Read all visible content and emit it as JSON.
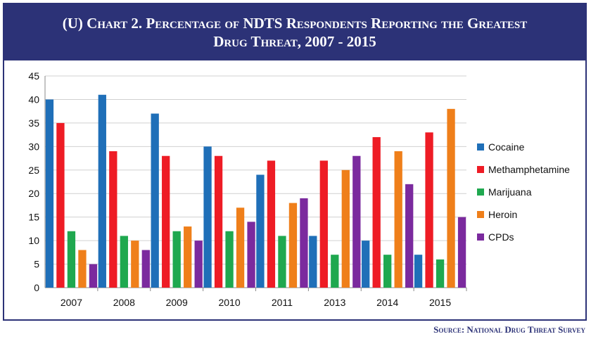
{
  "header": {
    "title_line1": "(U)  Chart 2.  Percentage of NDTS Respondents Reporting the Greatest",
    "title_line2": "Drug Threat, 2007 - 2015"
  },
  "source": "Source:  National Drug Threat Survey",
  "chart_data": {
    "type": "bar",
    "title": "(U)  Chart 2.  Percentage of NDTS Respondents Reporting the Greatest Drug Threat, 2007 - 2015",
    "categories": [
      "2007",
      "2008",
      "2009",
      "2010",
      "2011",
      "2013",
      "2014",
      "2015"
    ],
    "ylim": [
      0,
      45
    ],
    "yticks": [
      0,
      5,
      10,
      15,
      20,
      25,
      30,
      35,
      40,
      45
    ],
    "grid": "horizontal",
    "legend_position": "right",
    "series": [
      {
        "name": "Cocaine",
        "color": "#1f6fb8",
        "values": [
          40,
          41,
          37,
          30,
          24,
          11,
          10,
          7
        ]
      },
      {
        "name": "Methamphetamine",
        "color": "#ee1c25",
        "values": [
          35,
          29,
          28,
          28,
          27,
          27,
          32,
          33
        ]
      },
      {
        "name": "Marijuana",
        "color": "#1fa84f",
        "values": [
          12,
          11,
          12,
          12,
          11,
          7,
          7,
          6
        ]
      },
      {
        "name": "Heroin",
        "color": "#ef7f1a",
        "values": [
          8,
          10,
          13,
          17,
          18,
          25,
          29,
          38
        ]
      },
      {
        "name": "CPDs",
        "color": "#7b2a9e",
        "values": [
          5,
          8,
          10,
          14,
          19,
          28,
          22,
          15
        ]
      }
    ]
  }
}
